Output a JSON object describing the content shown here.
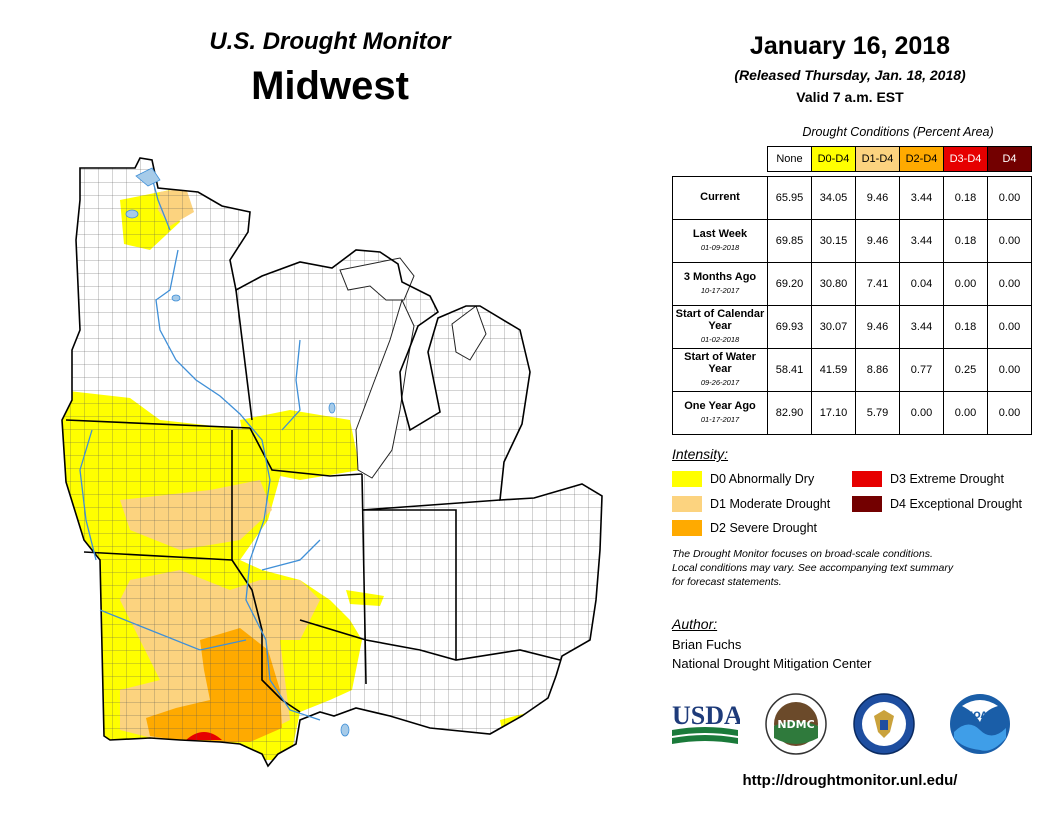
{
  "header": {
    "brand": "U.S. Drought Monitor",
    "region": "Midwest"
  },
  "date_block": {
    "date": "January 16, 2018",
    "released": "(Released Thursday, Jan. 18, 2018)",
    "valid": "Valid 7 a.m. EST"
  },
  "conditions": {
    "caption": "Drought Conditions (Percent Area)",
    "columns": [
      {
        "label": "None",
        "color": "#ffffff",
        "text_color": "#000000"
      },
      {
        "label": "D0-D4",
        "color": "#ffff00",
        "text_color": "#000000"
      },
      {
        "label": "D1-D4",
        "color": "#fcd37f",
        "text_color": "#000000"
      },
      {
        "label": "D2-D4",
        "color": "#ffaa00",
        "text_color": "#000000"
      },
      {
        "label": "D3-D4",
        "color": "#e60000",
        "text_color": "#ffffff"
      },
      {
        "label": "D4",
        "color": "#730000",
        "text_color": "#ffffff"
      }
    ],
    "rows": [
      {
        "label": "Current",
        "date": "",
        "values": [
          "65.95",
          "34.05",
          "9.46",
          "3.44",
          "0.18",
          "0.00"
        ]
      },
      {
        "label": "Last Week",
        "date": "01-09-2018",
        "values": [
          "69.85",
          "30.15",
          "9.46",
          "3.44",
          "0.18",
          "0.00"
        ]
      },
      {
        "label": "3 Months Ago",
        "date": "10-17-2017",
        "values": [
          "69.20",
          "30.80",
          "7.41",
          "0.04",
          "0.00",
          "0.00"
        ]
      },
      {
        "label": "Start of Calendar Year",
        "date": "01-02-2018",
        "values": [
          "69.93",
          "30.07",
          "9.46",
          "3.44",
          "0.18",
          "0.00"
        ]
      },
      {
        "label": "Start of Water Year",
        "date": "09-26-2017",
        "values": [
          "58.41",
          "41.59",
          "8.86",
          "0.77",
          "0.25",
          "0.00"
        ]
      },
      {
        "label": "One Year Ago",
        "date": "01-17-2017",
        "values": [
          "82.90",
          "17.10",
          "5.79",
          "0.00",
          "0.00",
          "0.00"
        ]
      }
    ]
  },
  "legend": {
    "heading": "Intensity:",
    "items": [
      {
        "label": "D0 Abnormally Dry",
        "color": "#ffff00"
      },
      {
        "label": "D1 Moderate Drought",
        "color": "#fcd37f"
      },
      {
        "label": "D2 Severe Drought",
        "color": "#ffaa00"
      },
      {
        "label": "D3 Extreme Drought",
        "color": "#e60000"
      },
      {
        "label": "D4 Exceptional Drought",
        "color": "#730000"
      }
    ]
  },
  "note": {
    "line1": "The Drought Monitor focuses on broad-scale conditions.",
    "line2": "Local conditions may vary. See accompanying text summary",
    "line3": "for forecast statements."
  },
  "author": {
    "heading": "Author:",
    "name": "Brian Fuchs",
    "org": "National Drought Mitigation Center"
  },
  "logos": {
    "usda": "USDA",
    "ndmc": "NDMC",
    "noaa": "NOAA"
  },
  "footer": {
    "url": "http://droughtmonitor.unl.edu/"
  },
  "map": {
    "icon": "midwest-drought-map",
    "water_color": "#a6cbe9",
    "river_color": "#3f8fd7"
  }
}
